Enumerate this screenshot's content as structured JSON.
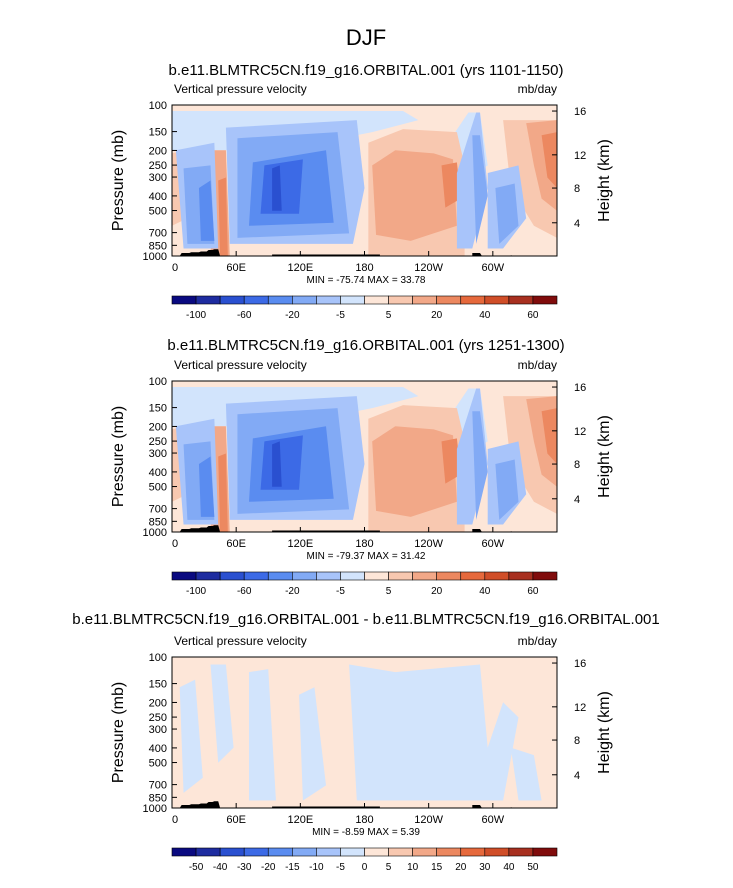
{
  "figure": {
    "title": "DJF"
  },
  "colors": {
    "velocity_scale": [
      "#0a0a80",
      "#1e2ca0",
      "#2a50d0",
      "#3c6ae6",
      "#5a8cf0",
      "#82aaf5",
      "#a8c4fa",
      "#d2e4fc",
      "#fde6d8",
      "#f8c8b0",
      "#f2a888",
      "#ec8860",
      "#e6693c",
      "#d04e28",
      "#a83020",
      "#800c0c"
    ],
    "velocity_ticks": [
      "-100",
      "-60",
      "-20",
      "-5",
      "5",
      "20",
      "40",
      "60"
    ],
    "diff_ticks": [
      "-50",
      "-40",
      "-30",
      "-20",
      "-15",
      "-10",
      "-5",
      "0",
      "5",
      "10",
      "15",
      "20",
      "30",
      "40",
      "50"
    ],
    "terrain": "#000000"
  },
  "chart_data": [
    {
      "type": "heatmap",
      "title": "b.e11.BLMTRC5CN.f19_g16.ORBITAL.001 (yrs 1101-1150)",
      "left_label": "Vertical pressure velocity",
      "right_label": "mb/day",
      "ylabel": "Pressure (mb)",
      "y2label": "Height (km)",
      "xticks": [
        "0",
        "60E",
        "120E",
        "180",
        "120W",
        "60W"
      ],
      "x_range": [
        0,
        360
      ],
      "yticks": [
        "100",
        "150",
        "200",
        "250",
        "300",
        "400",
        "500",
        "700",
        "850",
        "1000"
      ],
      "y2ticks": [
        "16",
        "12",
        "8",
        "4"
      ],
      "stats": "MIN = -75.74  MAX = 33.78",
      "colorbar_ticks": [
        "-100",
        "-60",
        "-20",
        "-5",
        "5",
        "20",
        "40",
        "60"
      ]
    },
    {
      "type": "heatmap",
      "title": "b.e11.BLMTRC5CN.f19_g16.ORBITAL.001 (yrs 1251-1300)",
      "left_label": "Vertical pressure velocity",
      "right_label": "mb/day",
      "ylabel": "Pressure (mb)",
      "y2label": "Height (km)",
      "xticks": [
        "0",
        "60E",
        "120E",
        "180",
        "120W",
        "60W"
      ],
      "x_range": [
        0,
        360
      ],
      "yticks": [
        "100",
        "150",
        "200",
        "250",
        "300",
        "400",
        "500",
        "700",
        "850",
        "1000"
      ],
      "y2ticks": [
        "16",
        "12",
        "8",
        "4"
      ],
      "stats": "MIN = -79.37  MAX = 31.42",
      "colorbar_ticks": [
        "-100",
        "-60",
        "-20",
        "-5",
        "5",
        "20",
        "40",
        "60"
      ]
    },
    {
      "type": "heatmap",
      "title": "b.e11.BLMTRC5CN.f19_g16.ORBITAL.001 - b.e11.BLMTRC5CN.f19_g16.ORBITAL.001",
      "left_label": "Vertical pressure velocity",
      "right_label": "mb/day",
      "ylabel": "Pressure (mb)",
      "y2label": "Height (km)",
      "xticks": [
        "0",
        "60E",
        "120E",
        "180",
        "120W",
        "60W"
      ],
      "x_range": [
        0,
        360
      ],
      "yticks": [
        "100",
        "150",
        "200",
        "250",
        "300",
        "400",
        "500",
        "700",
        "850",
        "1000"
      ],
      "y2ticks": [
        "16",
        "12",
        "8",
        "4"
      ],
      "stats": "MIN = -8.59  MAX =  5.39",
      "colorbar_ticks": [
        "-50",
        "-40",
        "-30",
        "-20",
        "-15",
        "-10",
        "-5",
        "0",
        "5",
        "10",
        "15",
        "20",
        "30",
        "40",
        "50"
      ]
    }
  ]
}
